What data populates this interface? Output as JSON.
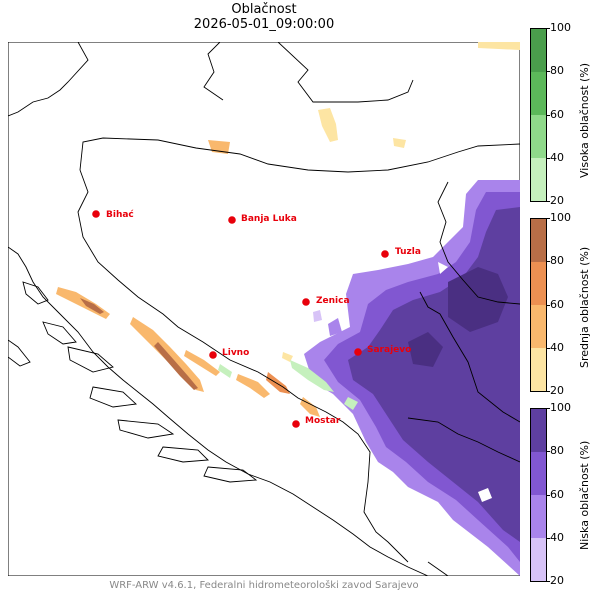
{
  "title": "Oblačnost",
  "datetime": "2026-05-01_09:00:00",
  "footer": "WRF-ARW v4.6.1, Federalni hidrometeorološki zavod Sarajevo",
  "cities": [
    {
      "name": "Bihać"
    },
    {
      "name": "Banja Luka"
    },
    {
      "name": "Tuzla"
    },
    {
      "name": "Zenica"
    },
    {
      "name": "Livno"
    },
    {
      "name": "Sarajevo"
    },
    {
      "name": "Mostar"
    }
  ],
  "colorbars": [
    {
      "label": "Visoka oblačnost (%)",
      "ticks": [
        "100",
        "80",
        "60",
        "40",
        "20"
      ],
      "colors": [
        "#c5f0bd",
        "#8fd98a",
        "#5cb85a",
        "#4a9e4c"
      ]
    },
    {
      "label": "Srednja oblačnost (%)",
      "ticks": [
        "100",
        "80",
        "60",
        "40",
        "20"
      ],
      "colors": [
        "#fde5a3",
        "#f9b86d",
        "#ec9052",
        "#b86e47"
      ]
    },
    {
      "label": "Niska oblačnost (%)",
      "ticks": [
        "100",
        "80",
        "60",
        "40",
        "20"
      ],
      "colors": [
        "#d7c3f7",
        "#a984eb",
        "#8157d1",
        "#5e3fa0"
      ]
    }
  ]
}
